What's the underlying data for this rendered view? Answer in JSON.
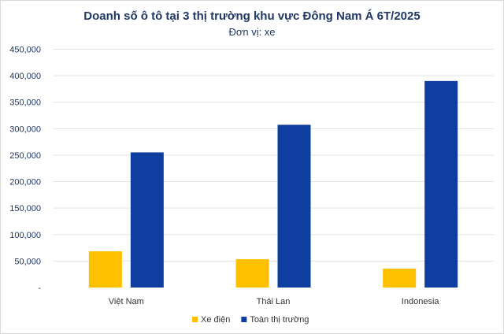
{
  "chart_data": {
    "type": "bar",
    "title": "Doanh số ô tô tại 3 thị trường khu vực Đông Nam Á 6T/2025",
    "subtitle": "Đơn vị: xe",
    "categories": [
      "Việt Nam",
      "Thái Lan",
      "Indonesia"
    ],
    "series": [
      {
        "name": "Xe điện",
        "color": "#ffc000",
        "values": [
          68400,
          53500,
          35700
        ]
      },
      {
        "name": "Toàn thị trường",
        "color": "#0f3ea1",
        "values": [
          255200,
          307300,
          390000
        ]
      }
    ],
    "ylim": [
      0,
      450000
    ],
    "yticks": [
      0,
      50000,
      100000,
      150000,
      200000,
      250000,
      300000,
      350000,
      400000,
      450000
    ],
    "ytick_labels": [
      "-",
      "50,000",
      "100,000",
      "150,000",
      "200,000",
      "250,000",
      "300,000",
      "350,000",
      "400,000",
      "450,000"
    ],
    "grid": true,
    "legend": "bottom",
    "xlabel": "",
    "ylabel": ""
  }
}
